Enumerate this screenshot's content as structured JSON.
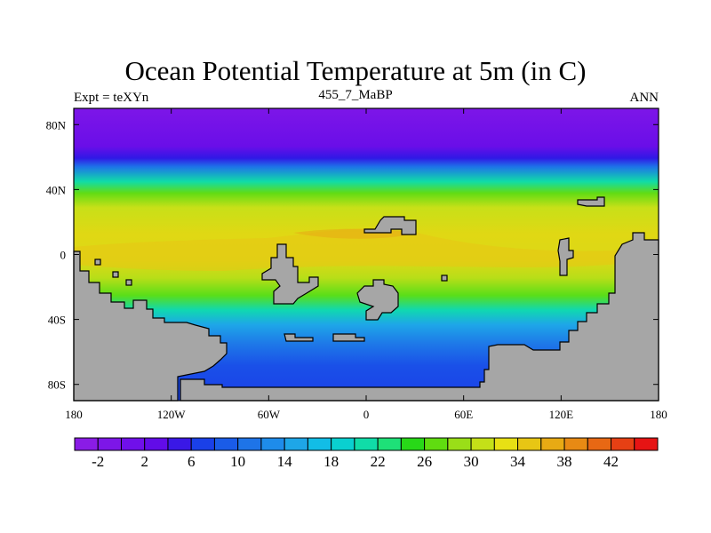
{
  "title": "Ocean Potential Temperature at 5m (in C)",
  "left_label": "Expt = teXYn",
  "center_label": "455_7_MaBP",
  "right_label": "ANN",
  "map": {
    "lon_range": [
      -180,
      180
    ],
    "lat_range": [
      -90,
      90
    ],
    "y_ticks": [
      {
        "label": "80N",
        "lat": 80
      },
      {
        "label": "40N",
        "lat": 40
      },
      {
        "label": "0",
        "lat": 0
      },
      {
        "label": "40S",
        "lat": -40
      },
      {
        "label": "80S",
        "lat": -80
      }
    ],
    "x_ticks": [
      {
        "label": "180",
        "lon": -180
      },
      {
        "label": "120W",
        "lon": -120
      },
      {
        "label": "60W",
        "lon": -60
      },
      {
        "label": "0",
        "lon": 0
      },
      {
        "label": "60E",
        "lon": 60
      },
      {
        "label": "120E",
        "lon": 120
      },
      {
        "label": "180",
        "lon": 180
      }
    ],
    "land_color": "#a6a6a6"
  },
  "colorbar": {
    "colors": [
      "#8a1ce6",
      "#7d16e8",
      "#7010ea",
      "#620ce8",
      "#3a18e6",
      "#1a40e8",
      "#1a5ce8",
      "#1e74e8",
      "#1e8ceb",
      "#1ea6e8",
      "#12bde6",
      "#0ad0d0",
      "#10dca8",
      "#1ee078",
      "#28d818",
      "#60dc10",
      "#9ade18",
      "#c4e018",
      "#e8e014",
      "#e8c614",
      "#e8aa14",
      "#e88a14",
      "#e86814",
      "#e64014",
      "#e61414"
    ],
    "labels": [
      "-2",
      "2",
      "6",
      "10",
      "14",
      "18",
      "22",
      "26",
      "30",
      "34",
      "38",
      "42"
    ]
  }
}
